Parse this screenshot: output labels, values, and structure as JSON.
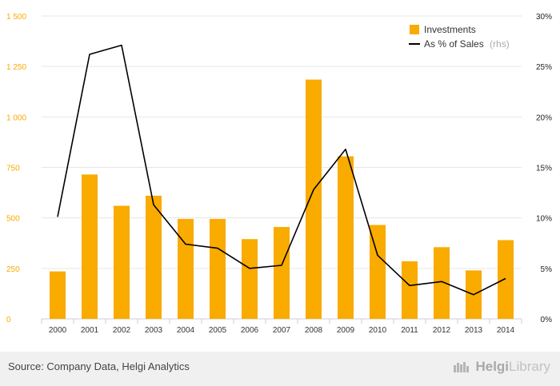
{
  "chart_data": {
    "type": "bar",
    "categories": [
      "2000",
      "2001",
      "2002",
      "2003",
      "2004",
      "2005",
      "2006",
      "2007",
      "2008",
      "2009",
      "2010",
      "2011",
      "2012",
      "2013",
      "2014"
    ],
    "series": [
      {
        "name": "Investments",
        "type": "bar",
        "axis": "left",
        "color": "#f9ab00",
        "values": [
          235,
          715,
          560,
          610,
          495,
          495,
          395,
          455,
          1185,
          805,
          465,
          285,
          355,
          240,
          390
        ]
      },
      {
        "name": "As % of Sales",
        "name_suffix": "(rhs)",
        "type": "line",
        "axis": "right",
        "color": "#000000",
        "values": [
          10.1,
          26.2,
          27.1,
          11.3,
          7.4,
          7.0,
          5.0,
          5.3,
          12.8,
          16.8,
          6.3,
          3.3,
          3.7,
          2.4,
          4.0
        ]
      }
    ],
    "y_left": {
      "ticks": [
        "0",
        "250",
        "500",
        "750",
        "1 000",
        "1 250",
        "1 500"
      ],
      "min": 0,
      "max": 1500,
      "color": "#f9ab00"
    },
    "y_right": {
      "ticks": [
        "0%",
        "5%",
        "10%",
        "15%",
        "20%",
        "25%",
        "30%"
      ],
      "min": 0,
      "max": 30
    },
    "grid": true,
    "legend": "top-right"
  },
  "footer": {
    "source": "Source: Company Data, Helgi Analytics",
    "brand_bold": "Helgi",
    "brand_light": "Library"
  }
}
